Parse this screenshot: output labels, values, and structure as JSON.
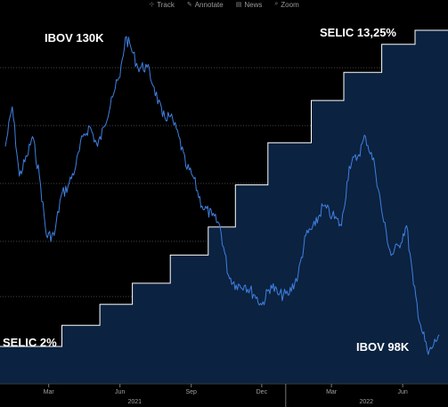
{
  "toolbar": {
    "items": [
      {
        "label": "Track",
        "icon": "track-icon"
      },
      {
        "label": "Annotate",
        "icon": "annotate-icon"
      },
      {
        "label": "News",
        "icon": "news-icon"
      },
      {
        "label": "Zoom",
        "icon": "zoom-icon"
      }
    ]
  },
  "colors": {
    "background": "#000000",
    "ibov_line": "#3f7fe0",
    "selic_line": "#ffffff",
    "selic_fill": "#0b2240",
    "grid": "#5a5a5a",
    "annotation_text": "#ffffff",
    "axis_text": "#a0a0a0"
  },
  "chart_data": {
    "type": "line",
    "title": "",
    "x_tick_labels": [
      "Mar",
      "Jun",
      "Sep",
      "Dec",
      "Mar",
      "Jun"
    ],
    "x_year_labels": [
      "2021",
      "2022"
    ],
    "grid": "horizontal dotted",
    "annotations": [
      "IBOV 130K",
      "SELIC 13,25%",
      "SELIC 2%",
      "IBOV 98K"
    ],
    "series": [
      {
        "name": "SELIC",
        "style": "step-area",
        "x": [
          "2021-01-04",
          "2021-03-18",
          "2021-05-06",
          "2021-06-17",
          "2021-08-05",
          "2021-09-23",
          "2021-10-28",
          "2021-12-09",
          "2022-02-03",
          "2022-03-17",
          "2022-05-05",
          "2022-06-17"
        ],
        "values": [
          2.0,
          2.75,
          3.5,
          4.25,
          5.25,
          6.25,
          7.75,
          9.25,
          10.75,
          11.75,
          12.75,
          13.25
        ]
      },
      {
        "name": "IBOV",
        "style": "line",
        "x": [
          "2021-01-04",
          "2021-01-13",
          "2021-01-22",
          "2021-02-01",
          "2021-02-08",
          "2021-02-17",
          "2021-02-26",
          "2021-03-08",
          "2021-03-17",
          "2021-03-26",
          "2021-04-05",
          "2021-04-14",
          "2021-04-23",
          "2021-05-03",
          "2021-05-12",
          "2021-05-21",
          "2021-06-01",
          "2021-06-08",
          "2021-06-15",
          "2021-06-24",
          "2021-07-06",
          "2021-07-15",
          "2021-07-26",
          "2021-08-05",
          "2021-08-16",
          "2021-08-25",
          "2021-09-03",
          "2021-09-15",
          "2021-09-28",
          "2021-10-08",
          "2021-10-19",
          "2021-10-29",
          "2021-11-10",
          "2021-11-22",
          "2021-12-01",
          "2021-12-13",
          "2021-12-23",
          "2022-01-04",
          "2022-01-17",
          "2022-01-27",
          "2022-02-08",
          "2022-02-18",
          "2022-03-02",
          "2022-03-14",
          "2022-03-24",
          "2022-04-04",
          "2022-04-14",
          "2022-04-26",
          "2022-05-06",
          "2022-05-17",
          "2022-05-27",
          "2022-06-06",
          "2022-06-15",
          "2022-06-24",
          "2022-07-04",
          "2022-07-11",
          "2022-07-18"
        ],
        "values": [
          119,
          123,
          116,
          118,
          120,
          116,
          110,
          110,
          114,
          115,
          117,
          120,
          121,
          119,
          121,
          124,
          126,
          130,
          129,
          127,
          127,
          125,
          122,
          122,
          120,
          117,
          116,
          113,
          112,
          111,
          106,
          105,
          105,
          104,
          103,
          105,
          104,
          104,
          106,
          110,
          111,
          113,
          112,
          111,
          117,
          118,
          120,
          117,
          112,
          108,
          109,
          111,
          105,
          101,
          98,
          99,
          100
        ]
      }
    ]
  }
}
